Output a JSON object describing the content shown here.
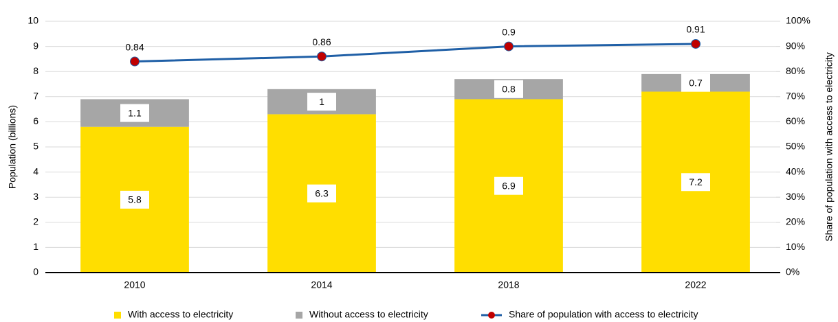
{
  "chart_data": {
    "type": "bar",
    "stacked": true,
    "categories": [
      "2010",
      "2014",
      "2018",
      "2022"
    ],
    "ylabel": "Population (billions)",
    "y2label": "Share of population with access to electricity",
    "ylim": [
      0,
      10
    ],
    "yticks": [
      0,
      1,
      2,
      3,
      4,
      5,
      6,
      7,
      8,
      9,
      10
    ],
    "y2lim": [
      0,
      1
    ],
    "y2ticks": [
      {
        "value": 0,
        "label": "0%"
      },
      {
        "value": 0.1,
        "label": "10%"
      },
      {
        "value": 0.2,
        "label": "20%"
      },
      {
        "value": 0.3,
        "label": "30%"
      },
      {
        "value": 0.4,
        "label": "40%"
      },
      {
        "value": 0.5,
        "label": "50%"
      },
      {
        "value": 0.6,
        "label": "60%"
      },
      {
        "value": 0.7,
        "label": "70%"
      },
      {
        "value": 0.8,
        "label": "80%"
      },
      {
        "value": 0.9,
        "label": "90%"
      },
      {
        "value": 1,
        "label": "100%"
      }
    ],
    "grid": true,
    "legend": "bottom",
    "series": [
      {
        "name": "With access to electricity",
        "type": "bar",
        "color": "#ffde00",
        "values": [
          5.8,
          6.3,
          6.9,
          7.2
        ]
      },
      {
        "name": "Without access to electricity",
        "type": "bar",
        "color": "#a6a6a6",
        "values": [
          1.1,
          1,
          0.8,
          0.7
        ]
      },
      {
        "name": "Share of population with access to electricity",
        "type": "line",
        "axis": "y2",
        "color": "#1f5fa6",
        "marker_color": "#c00000",
        "values": [
          0.84,
          0.86,
          0.9,
          0.91
        ]
      }
    ]
  }
}
